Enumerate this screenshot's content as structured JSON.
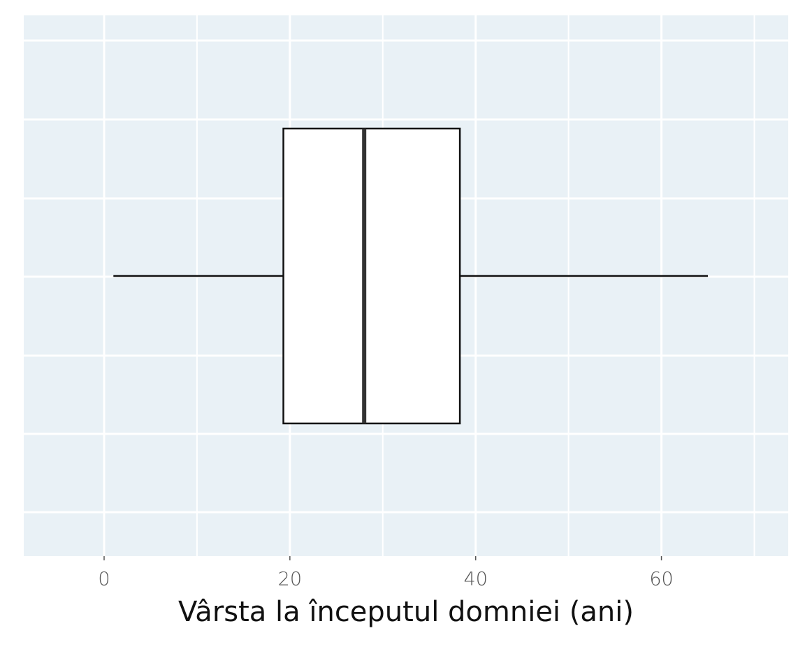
{
  "chart_data": {
    "type": "boxplot",
    "xlabel": "Vârsta la începutul domniei (ani)",
    "boxes": [
      {
        "min": 1,
        "q1": 19.3,
        "median": 28,
        "q3": 38.3,
        "max": 65
      }
    ],
    "box_color": "#ffffff",
    "xlim": [
      -8.65,
      73.65
    ],
    "xticks": [
      0,
      20,
      40,
      60
    ],
    "x_minor_grid": [
      10,
      30,
      50,
      70
    ],
    "grid": true
  }
}
